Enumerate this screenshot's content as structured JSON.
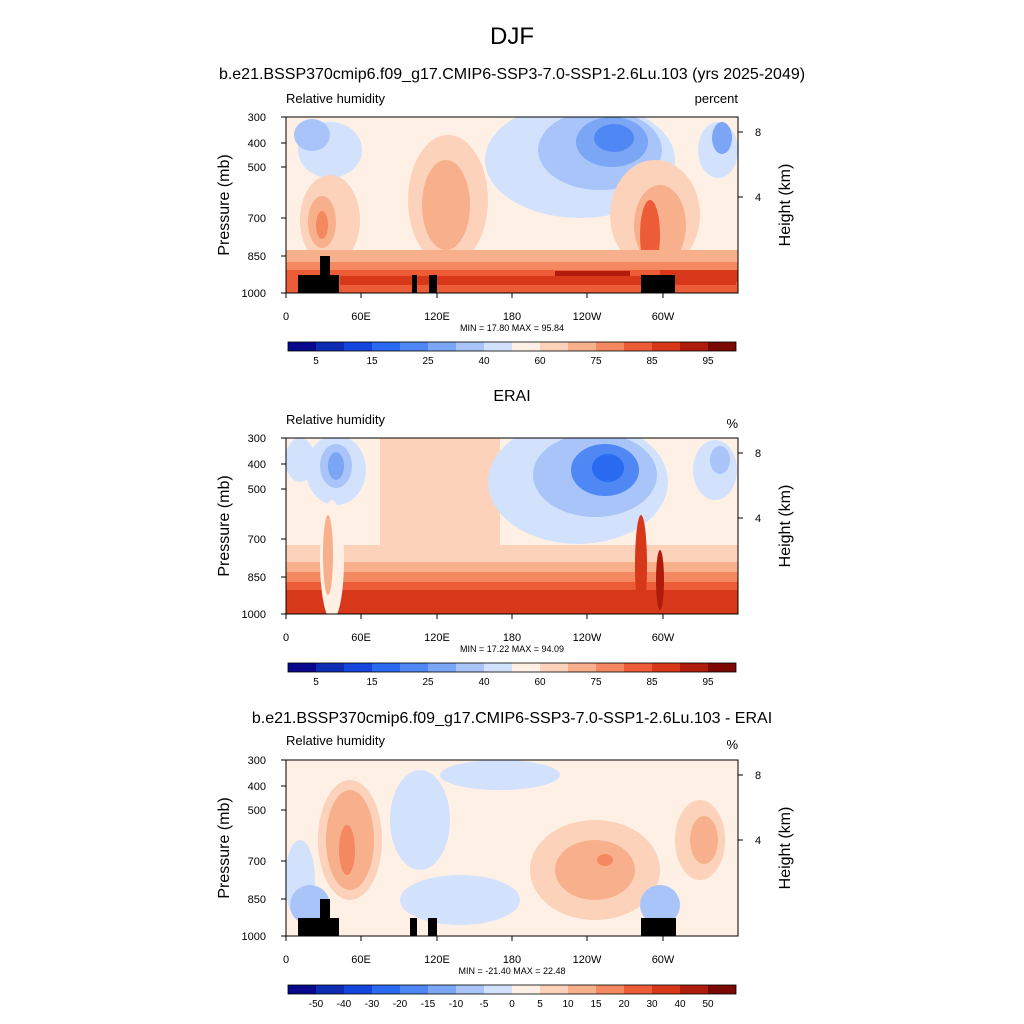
{
  "figure": {
    "title": "DJF"
  },
  "chart_data": [
    {
      "type": "heatmap",
      "title": "b.e21.BSSP370cmip6.f09_g17.CMIP6-SSP3-7.0-SSP1-2.6Lu.103 (yrs 2025-2049)",
      "left_label": "Relative humidity",
      "right_label": "percent",
      "ylabel": "Pressure (mb)",
      "ylabel_right": "Height (km)",
      "y_ticks": [
        "300",
        "400",
        "500",
        "700",
        "850",
        "1000"
      ],
      "y_right_ticks": [
        "8",
        "4"
      ],
      "x_ticks": [
        "0",
        "60E",
        "120E",
        "180",
        "120W",
        "60W"
      ],
      "stats": "MIN = 17.80  MAX = 95.84",
      "colorbar_labels": [
        "5",
        "15",
        "25",
        "40",
        "60",
        "75",
        "85",
        "95"
      ],
      "colorbar_levels": [
        5,
        10,
        15,
        20,
        25,
        30,
        40,
        50,
        60,
        70,
        75,
        80,
        85,
        90,
        95
      ],
      "min": 17.8,
      "max": 95.84
    },
    {
      "type": "heatmap",
      "title": "ERAI",
      "left_label": "Relative humidity",
      "right_label": "%",
      "ylabel": "Pressure (mb)",
      "ylabel_right": "Height (km)",
      "y_ticks": [
        "300",
        "400",
        "500",
        "700",
        "850",
        "1000"
      ],
      "y_right_ticks": [
        "8",
        "4"
      ],
      "x_ticks": [
        "0",
        "60E",
        "120E",
        "180",
        "120W",
        "60W"
      ],
      "stats": "MIN = 17.22  MAX = 94.09",
      "colorbar_labels": [
        "5",
        "15",
        "25",
        "40",
        "60",
        "75",
        "85",
        "95"
      ],
      "colorbar_levels": [
        5,
        10,
        15,
        20,
        25,
        30,
        40,
        50,
        60,
        70,
        75,
        80,
        85,
        90,
        95
      ],
      "min": 17.22,
      "max": 94.09
    },
    {
      "type": "heatmap",
      "title": "b.e21.BSSP370cmip6.f09_g17.CMIP6-SSP3-7.0-SSP1-2.6Lu.103 - ERAI",
      "left_label": "Relative humidity",
      "right_label": "%",
      "ylabel": "Pressure (mb)",
      "ylabel_right": "Height (km)",
      "y_ticks": [
        "300",
        "400",
        "500",
        "700",
        "850",
        "1000"
      ],
      "y_right_ticks": [
        "8",
        "4"
      ],
      "x_ticks": [
        "0",
        "60E",
        "120E",
        "180",
        "120W",
        "60W"
      ],
      "stats": "MIN = -21.40  MAX = 22.48",
      "colorbar_labels": [
        "-50",
        "-40",
        "-30",
        "-20",
        "-15",
        "-10",
        "-5",
        "0",
        "5",
        "10",
        "15",
        "20",
        "30",
        "40",
        "50"
      ],
      "colorbar_levels": [
        -50,
        -40,
        -30,
        -20,
        -15,
        -10,
        -5,
        0,
        5,
        10,
        15,
        20,
        30,
        40,
        50
      ],
      "min": -21.4,
      "max": 22.48
    }
  ],
  "colors": {
    "palette": [
      "#08088c",
      "#0c2cb4",
      "#1446dc",
      "#2a6af0",
      "#4f88f4",
      "#7ba6f6",
      "#a8c4f8",
      "#d2e2fc",
      "#fff0e6",
      "#fcd2ba",
      "#f8b08c",
      "#f48860",
      "#ec5c36",
      "#d8381a",
      "#b01c0c",
      "#7c0804"
    ],
    "topography": "#000000"
  }
}
